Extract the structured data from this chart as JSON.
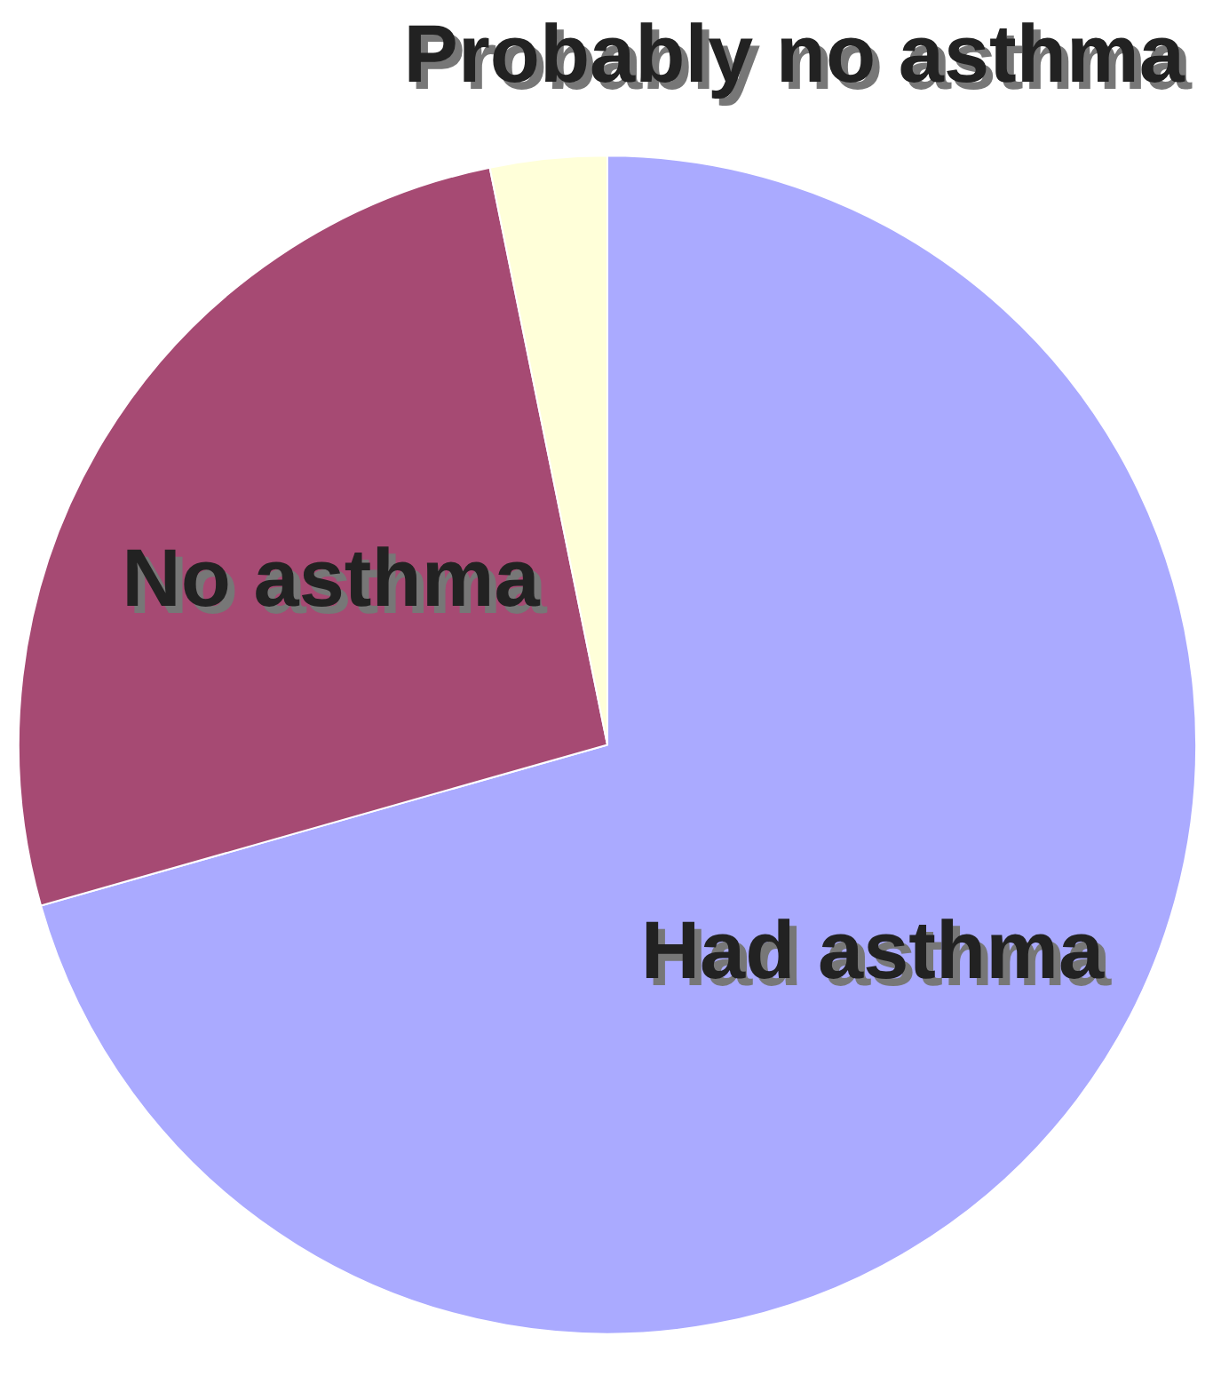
{
  "chart_data": {
    "type": "pie",
    "categories": [
      "Had asthma",
      "No asthma",
      "Probably no asthma"
    ],
    "values": [
      70.6,
      26.2,
      3.2
    ],
    "colors": [
      "#aaaaff",
      "#a64a73",
      "#ffffd9"
    ]
  }
}
